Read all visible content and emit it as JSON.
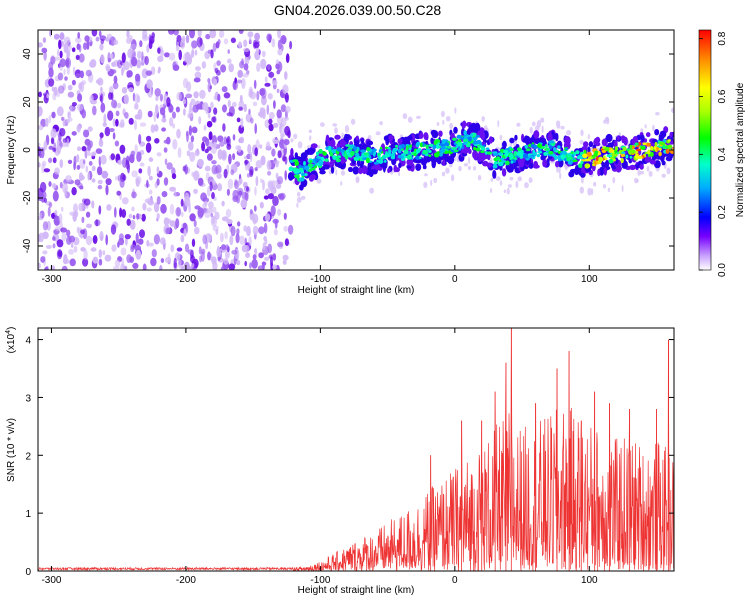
{
  "title": "GN04.2026.039.00.50.C28",
  "chart_data": [
    {
      "type": "heatmap",
      "xlabel": "Height of straight line (km)",
      "ylabel": "Frequency (Hz)",
      "xlim": [
        -310,
        163
      ],
      "ylim": [
        -50,
        50
      ],
      "xticks": [
        -300,
        -200,
        -100,
        0,
        100
      ],
      "yticks": [
        -40,
        -20,
        0,
        20,
        40
      ],
      "grid": false,
      "colorbar": {
        "label": "Normalized spectral amplitude",
        "range": [
          0.0,
          0.83
        ],
        "ticks": [
          "0.0",
          "0.2",
          "0.4",
          "0.6",
          "0.8"
        ]
      },
      "noise_region": {
        "x_range": [
          -310,
          -122
        ],
        "freq_range": [
          -50,
          50
        ]
      },
      "signal_ridge": {
        "x": [
          -122,
          -115,
          -105,
          -95,
          -80,
          -60,
          -40,
          -20,
          0,
          10,
          20,
          30,
          50,
          70,
          85,
          100,
          110,
          120,
          130,
          140,
          150,
          163
        ],
        "freq": [
          -5,
          -10,
          -5,
          -2,
          -1,
          -3,
          -1,
          0,
          2,
          5,
          2,
          -4,
          -1,
          1,
          -3,
          -4,
          -2,
          -2,
          -1,
          0,
          1,
          2
        ]
      }
    },
    {
      "type": "line",
      "xlabel": "Height of straight line (km)",
      "ylabel": "SNR (10 * v/v)",
      "y_scale_label": "(x10",
      "y_scale_exp": "4",
      "xlim": [
        -310,
        163
      ],
      "ylim": [
        0,
        4.2
      ],
      "xticks": [
        -300,
        -200,
        -100,
        0,
        100
      ],
      "yticks": [
        0,
        1,
        2,
        3,
        4
      ],
      "series_color": "#ee3333",
      "envelope": {
        "x": [
          -310,
          -130,
          -120,
          -110,
          -100,
          -90,
          -80,
          -70,
          -60,
          -50,
          -40,
          -30,
          -20,
          -10,
          0,
          10,
          20,
          30,
          40,
          50,
          60,
          70,
          80,
          90,
          100,
          110,
          120,
          130,
          140,
          150,
          163
        ],
        "y": [
          0.04,
          0.04,
          0.06,
          0.1,
          0.18,
          0.3,
          0.45,
          0.6,
          0.7,
          0.85,
          1.0,
          1.2,
          1.4,
          1.6,
          1.8,
          2.0,
          2.2,
          2.5,
          2.8,
          2.5,
          2.6,
          2.7,
          2.9,
          2.8,
          2.6,
          2.5,
          2.3,
          2.4,
          2.2,
          2.3,
          2.0
        ]
      },
      "peaks": [
        [
          -18,
          2.0
        ],
        [
          5,
          2.6
        ],
        [
          20,
          2.6
        ],
        [
          30,
          3.1
        ],
        [
          38,
          3.6
        ],
        [
          42,
          4.2
        ],
        [
          60,
          2.9
        ],
        [
          76,
          3.5
        ],
        [
          85,
          3.8
        ],
        [
          94,
          2.6
        ],
        [
          104,
          3.1
        ],
        [
          115,
          2.9
        ],
        [
          130,
          2.8
        ],
        [
          150,
          2.8
        ],
        [
          159,
          4.0
        ]
      ]
    }
  ]
}
